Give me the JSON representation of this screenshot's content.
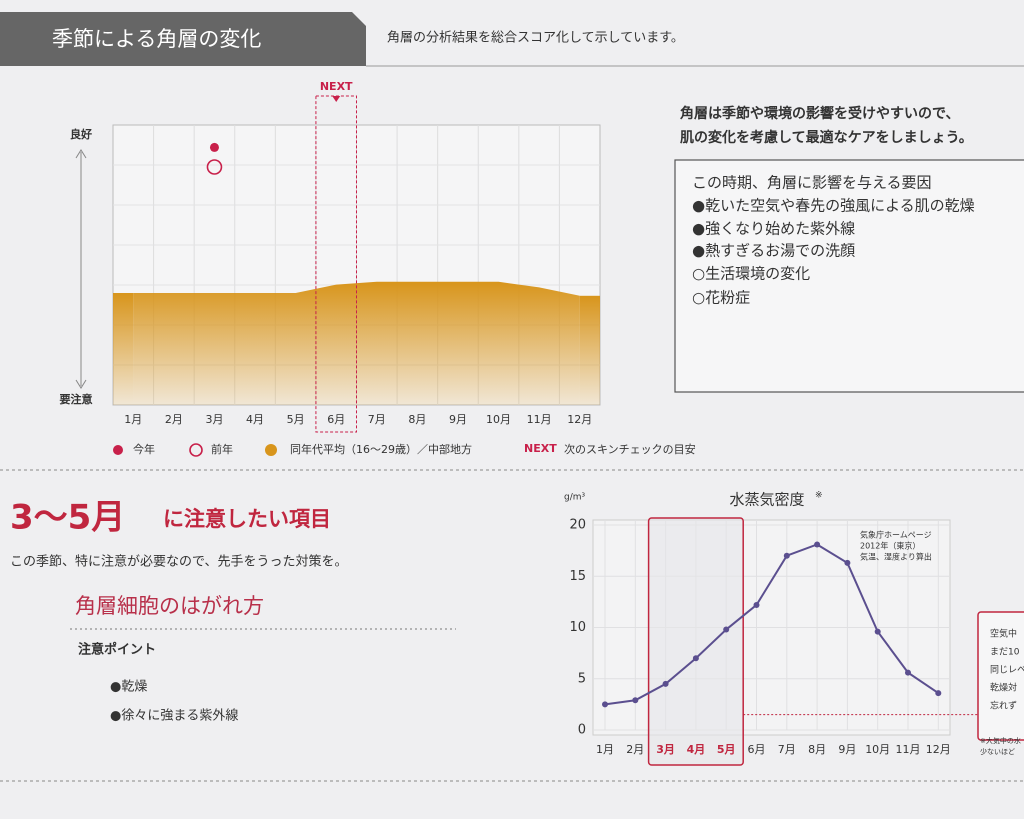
{
  "header": {
    "title": "季節による角層の変化",
    "subtitle": "角層の分析結果を総合スコア化して示しています。"
  },
  "advice": {
    "lines": [
      "角層は季節や環境の影響を受けやすいので、",
      "肌の変化を考慮して最適なケアをしましょう。"
    ]
  },
  "factors": {
    "title": "この時期、角層に影響を与える要因",
    "items": [
      "●乾いた空気や春先の強風による肌の乾燥",
      "●強くなり始めた紫外線",
      "●熱すぎるお湯での洗顔",
      "○生活環境の変化",
      "○花粉症"
    ]
  },
  "chart_data": [
    {
      "type": "area",
      "y_top_label": "良好",
      "y_bottom_label": "要注意",
      "categories": [
        "1月",
        "2月",
        "3月",
        "4月",
        "5月",
        "6月",
        "7月",
        "8月",
        "9月",
        "10月",
        "11月",
        "12月"
      ],
      "ylim": [
        0,
        100
      ],
      "series": [
        {
          "name": "同年代平均（16〜29歳）／中部地方",
          "color": "#d8951c",
          "values": [
            40,
            40,
            40,
            40,
            40,
            43,
            44,
            44,
            44,
            44,
            42,
            39
          ]
        }
      ],
      "points": [
        {
          "name": "今年",
          "category": "3月",
          "value": 92,
          "color": "#c8204a",
          "filled": true
        },
        {
          "name": "前年",
          "category": "3月",
          "value": 85,
          "color": "#c8204a",
          "filled": false
        }
      ],
      "next": {
        "label": "NEXT",
        "category": "6月",
        "note": "次のスキンチェックの目安",
        "color": "#c8204a"
      }
    },
    {
      "type": "line",
      "title": "水蒸気密度",
      "title_note": "※",
      "y_unit": "g/m³",
      "categories": [
        "1月",
        "2月",
        "3月",
        "4月",
        "5月",
        "6月",
        "7月",
        "8月",
        "9月",
        "10月",
        "11月",
        "12月"
      ],
      "values": [
        2.5,
        2.9,
        4.5,
        7.0,
        9.8,
        12.2,
        17.0,
        18.1,
        16.3,
        9.6,
        5.6,
        3.6
      ],
      "color": "#5b4f8f",
      "ylim": [
        0,
        20
      ],
      "yticks": [
        0,
        5,
        10,
        15,
        20
      ],
      "reference_line": 1.5,
      "source": [
        "気象庁ホームページ",
        "2012年（東京）",
        "気温、湿度より算出"
      ],
      "side_note": [
        "空気中",
        "まだ10",
        "同じレベ",
        "乾燥対",
        "忘れず"
      ],
      "footnote": [
        "※大気中の水",
        "少ないほど"
      ]
    }
  ],
  "caution": {
    "period": "3〜5月",
    "heading": "に注意したい項目",
    "lead": "この季節、特に注意が必要なので、先手をうった対策を。",
    "topic": "角層細胞のはがれ方",
    "points_title": "注意ポイント",
    "points": [
      "●乾燥",
      "●徐々に強まる紫外線"
    ]
  }
}
